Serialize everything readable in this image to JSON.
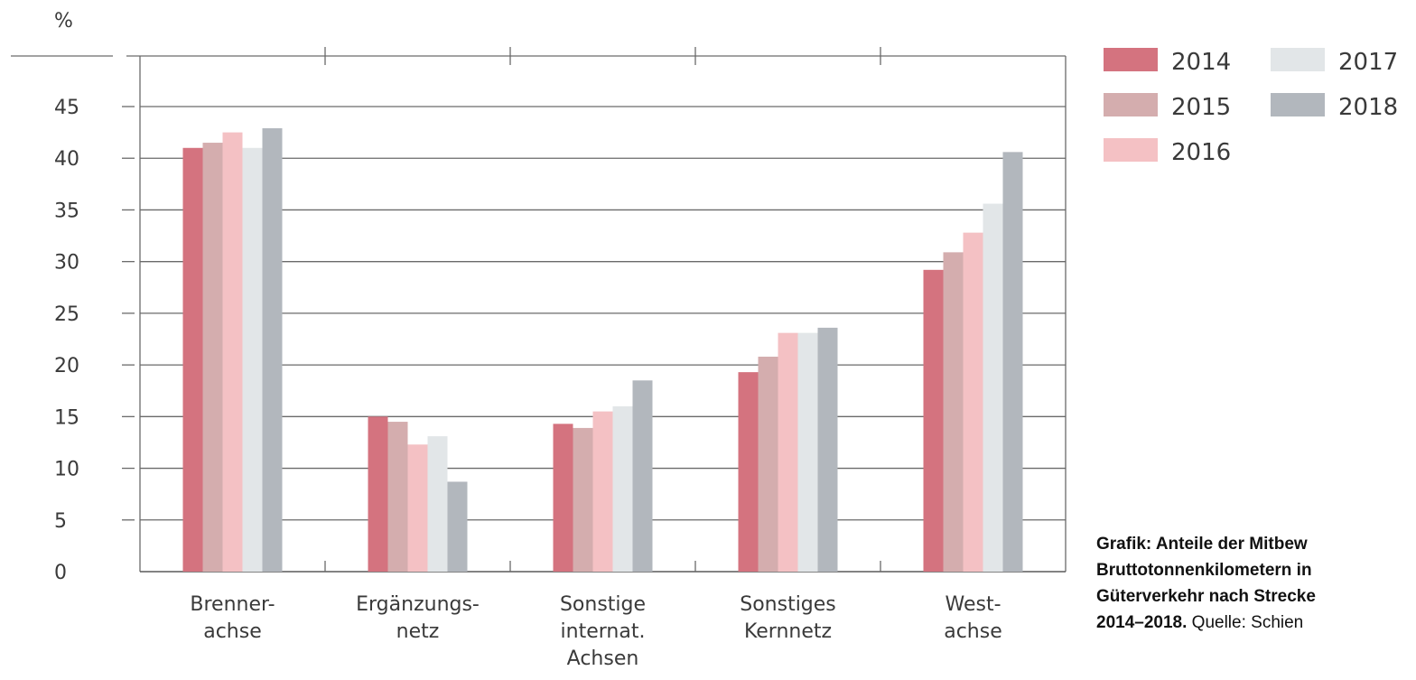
{
  "chart_data": {
    "type": "bar",
    "yunit": "%",
    "ylim": [
      0,
      45
    ],
    "yticks": [
      0,
      5,
      10,
      15,
      20,
      25,
      30,
      35,
      40,
      45
    ],
    "grid": true,
    "legend_position": "top-right",
    "categories": [
      [
        "Brenner-",
        "achse"
      ],
      [
        "Ergänzungs-",
        "netz"
      ],
      [
        "Sonstige",
        "internat.",
        "Achsen"
      ],
      [
        "Sonstiges",
        "Kernnetz"
      ],
      [
        "West-",
        "achse"
      ]
    ],
    "series": [
      {
        "name": "2014",
        "color": "#d4737f",
        "values": [
          41.0,
          15.0,
          14.3,
          19.3,
          29.2
        ]
      },
      {
        "name": "2015",
        "color": "#d4adae",
        "values": [
          41.5,
          14.5,
          13.9,
          20.8,
          30.9
        ]
      },
      {
        "name": "2016",
        "color": "#f4c1c4",
        "values": [
          42.5,
          12.3,
          15.5,
          23.1,
          32.8
        ]
      },
      {
        "name": "2017",
        "color": "#e2e6e8",
        "values": [
          41.0,
          13.1,
          16.0,
          23.1,
          35.6
        ]
      },
      {
        "name": "2018",
        "color": "#b2b7bd",
        "values": [
          42.9,
          8.7,
          18.5,
          23.6,
          40.6
        ]
      }
    ]
  },
  "caption": {
    "bold_lines": [
      "Grafik: Anteile der Mitbew",
      "Bruttotonnenkilometern in",
      "Güterverkehr nach Strecke",
      "2014–2018."
    ],
    "source": "Quelle: Schien"
  }
}
